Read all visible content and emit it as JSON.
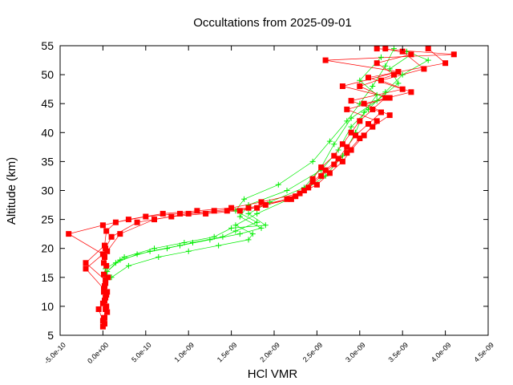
{
  "chart_data": {
    "type": "scatter",
    "title": "Occultations from 2025-09-01",
    "xlabel": "HCl VMR",
    "ylabel": "Altitude (km)",
    "xlim": [
      -5e-10,
      4.5e-09
    ],
    "ylim": [
      5,
      55
    ],
    "x_ticks": [
      "-5.0e-10",
      "0.0e+00",
      "5.0e-10",
      "1.0e-09",
      "1.5e-09",
      "2.0e-09",
      "2.5e-09",
      "3.0e-09",
      "3.5e-09",
      "4.0e-09",
      "4.5e-09"
    ],
    "y_ticks": [
      "5",
      "10",
      "15",
      "20",
      "25",
      "30",
      "35",
      "40",
      "45",
      "50",
      "55"
    ],
    "grid": false,
    "legend": "none",
    "series": [
      {
        "color": "#00ee00",
        "marker": "plus",
        "profiles": [
          {
            "x": [
              2e-11,
              1.5e-10,
              4e-10,
              7.5e-10,
              1.05e-09,
              1.4e-09,
              1.55e-09,
              1.8e-09,
              1.55e-09,
              1.65e-09,
              2.05e-09,
              2.45e-09,
              2.65e-09,
              2.85e-09,
              3e-09,
              3.15e-09,
              3.3e-09,
              3.4e-09
            ],
            "y": [
              15.5,
              17.5,
              19.0,
              20.0,
              21.0,
              22.0,
              23.0,
              24.5,
              26.5,
              28.5,
              31.0,
              35.0,
              38.5,
              42.0,
              45.0,
              48.0,
              51.5,
              54.5
            ]
          },
          {
            "x": [
              5e-11,
              2e-10,
              5.5e-10,
              9e-10,
              1.25e-09,
              1.6e-09,
              1.85e-09,
              1.6e-09,
              1.7e-09,
              2.15e-09,
              2.55e-09,
              2.75e-09,
              2.9e-09,
              3.1e-09,
              3.3e-09,
              3.5e-09,
              3.8e-09,
              3.55e-09
            ],
            "y": [
              16.0,
              18.0,
              19.5,
              20.5,
              21.5,
              22.5,
              23.5,
              25.5,
              27.5,
              30.0,
              33.5,
              37.0,
              41.0,
              44.0,
              47.0,
              50.0,
              52.5,
              54.0
            ]
          },
          {
            "x": [
              1e-10,
              3e-10,
              6.5e-10,
              1e-09,
              1.35e-09,
              1.7e-09,
              1.75e-09,
              1.55e-09,
              1.8e-09,
              2.25e-09,
              2.6e-09,
              2.8e-09,
              2.95e-09,
              3.05e-09,
              3.2e-09,
              3e-09,
              3.25e-09
            ],
            "y": [
              15.0,
              17.0,
              18.5,
              19.5,
              20.5,
              21.5,
              22.5,
              24.0,
              26.0,
              29.0,
              32.5,
              36.0,
              40.0,
              43.5,
              46.5,
              49.0,
              53.0
            ]
          },
          {
            "x": [
              3e-11,
              2.5e-10,
              6e-10,
              9.5e-10,
              1.3e-09,
              1.5e-09,
              1.9e-09,
              1.7e-09,
              1.95e-09,
              2.35e-09,
              2.55e-09,
              2.7e-09,
              2.9e-09,
              3.2e-09,
              3.45e-09,
              3.35e-09,
              3.6e-09
            ],
            "y": [
              16.5,
              18.5,
              20.0,
              21.0,
              22.0,
              23.5,
              24.0,
              26.0,
              28.0,
              30.5,
              34.0,
              38.0,
              42.5,
              45.5,
              48.5,
              51.0,
              53.5
            ]
          }
        ]
      },
      {
        "color": "#ff0000",
        "marker": "square",
        "profiles": [
          {
            "x": [
              0.0,
              1e-11,
              3e-11,
              2e-11,
              5e-11,
              3e-11,
              1e-11,
              4e-11,
              2e-11,
              3e-11,
              1e-10,
              4e-10,
              8e-10,
              1.2e-09,
              1.6e-09,
              1.9e-09,
              2.2e-09,
              2.35e-09,
              2.45e-09,
              2.55e-09,
              2.7e-09,
              2.8e-09,
              2.9e-09,
              3e-09,
              3.15e-09,
              3.3e-09,
              3e-09,
              3.4e-09,
              3.2e-09,
              3.6e-09,
              3.3e-09
            ],
            "y": [
              6.5,
              8.0,
              9.5,
              11.0,
              12.5,
              14.0,
              15.5,
              17.0,
              18.5,
              20.0,
              22.0,
              24.5,
              25.5,
              26.0,
              26.5,
              27.5,
              28.5,
              30.0,
              32.0,
              34.0,
              36.0,
              38.0,
              40.0,
              42.0,
              44.0,
              46.0,
              48.0,
              50.0,
              52.0,
              53.5,
              54.5
            ]
          },
          {
            "x": [
              2e-11,
              5e-11,
              0.0,
              4e-11,
              2e-11,
              6e-11,
              1e-11,
              5e-11,
              2e-10,
              6e-10,
              1e-09,
              1.45e-09,
              1.8e-09,
              2.25e-09,
              2.45e-09,
              2.6e-09,
              2.75e-09,
              2.85e-09,
              2.95e-09,
              3.1e-09,
              3.25e-09,
              2.9e-09,
              3.5e-09,
              3.1e-09,
              4e-09,
              3.8e-09
            ],
            "y": [
              7.0,
              9.0,
              10.5,
              12.0,
              13.5,
              15.0,
              17.5,
              19.5,
              22.5,
              25.0,
              26.0,
              26.5,
              27.0,
              29.0,
              31.5,
              33.5,
              35.5,
              37.5,
              39.5,
              41.5,
              43.5,
              45.5,
              47.5,
              49.5,
              52.0,
              54.5
            ]
          },
          {
            "x": [
              0.0,
              -5e-11,
              3e-11,
              1e-11,
              -2e-10,
              0.0,
              -4e-10,
              0.0,
              3e-10,
              7e-10,
              1.1e-09,
              1.5e-09,
              1.85e-09,
              2.3e-09,
              2.5e-09,
              2.65e-09,
              2.8e-09,
              2.9e-09,
              3.05e-09,
              3.2e-09,
              2.85e-09,
              3.35e-09,
              2.8e-09,
              3.45e-09,
              2.6e-09,
              4.1e-09,
              3.2e-09
            ],
            "y": [
              7.5,
              9.5,
              11.5,
              13.0,
              16.5,
              19.0,
              22.5,
              24.0,
              25.0,
              26.0,
              26.5,
              27.0,
              28.0,
              29.5,
              31.0,
              33.0,
              35.0,
              37.0,
              39.5,
              42.0,
              44.0,
              46.0,
              48.0,
              50.5,
              52.5,
              53.5,
              54.5
            ]
          },
          {
            "x": [
              2e-11,
              4e-11,
              1e-11,
              3e-11,
              -2e-10,
              2e-11,
              4e-11,
              1.5e-10,
              5e-10,
              9e-10,
              1.3e-09,
              1.7e-09,
              2.15e-09,
              2.4e-09,
              2.55e-09,
              2.7e-09,
              2.85e-09,
              3e-09,
              3.15e-09,
              3.35e-09,
              3.05e-09,
              3.6e-09,
              3.25e-09,
              3.75e-09,
              3.5e-09
            ],
            "y": [
              8.0,
              10.0,
              12.5,
              14.5,
              17.5,
              20.5,
              23.0,
              24.5,
              25.5,
              26.0,
              26.5,
              27.0,
              28.5,
              30.5,
              32.5,
              34.5,
              36.5,
              39.0,
              41.0,
              43.0,
              45.0,
              47.0,
              49.0,
              51.0,
              54.0
            ]
          }
        ]
      }
    ]
  }
}
